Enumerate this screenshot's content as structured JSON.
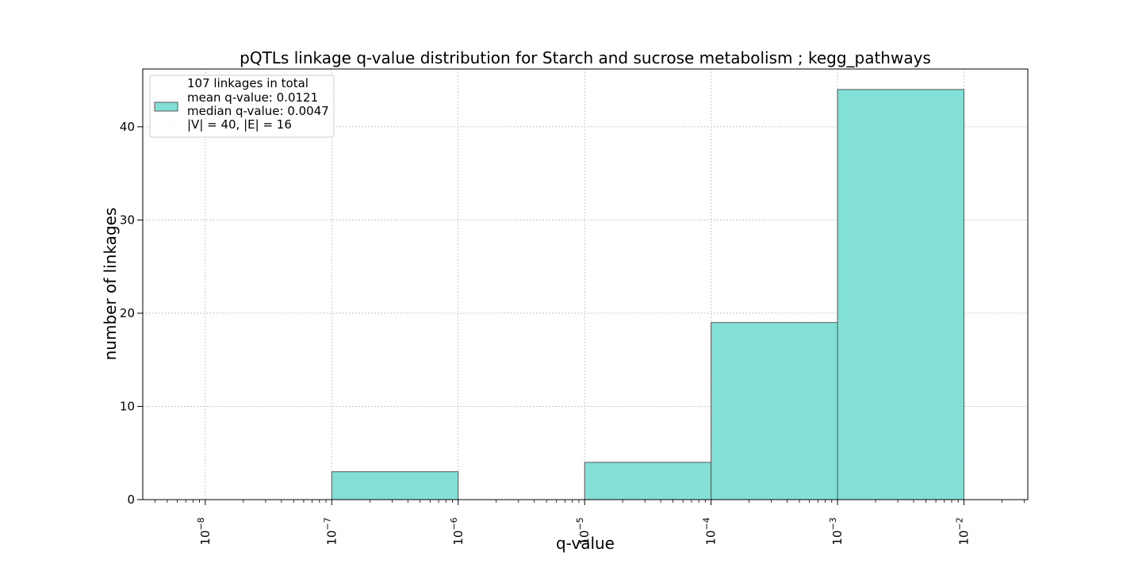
{
  "chart_data": {
    "type": "bar",
    "title": "pQTLs linkage q-value distribution for Starch and sucrose metabolism ; kegg_pathways",
    "xlabel": "q-value",
    "ylabel": "number of linkages",
    "x_scale": "log",
    "xlim": [
      3.2e-09,
      0.032
    ],
    "ylim": [
      0,
      46.2
    ],
    "x_ticks": [
      {
        "value": 1e-08,
        "base": "10",
        "exp": "−8"
      },
      {
        "value": 1e-07,
        "base": "10",
        "exp": "−7"
      },
      {
        "value": 1e-06,
        "base": "10",
        "exp": "−6"
      },
      {
        "value": 1e-05,
        "base": "10",
        "exp": "−5"
      },
      {
        "value": 0.0001,
        "base": "10",
        "exp": "−4"
      },
      {
        "value": 0.001,
        "base": "10",
        "exp": "−3"
      },
      {
        "value": 0.01,
        "base": "10",
        "exp": "−2"
      }
    ],
    "y_ticks": [
      0,
      10,
      20,
      30,
      40
    ],
    "grid": true,
    "legend_position": "top-left",
    "legend_lines": [
      "107 linkages in total",
      "mean q-value: 0.0121",
      "median q-value: 0.0047",
      "|V| = 40, |E| = 16"
    ],
    "bins": [
      {
        "x0": 1e-08,
        "x1": 1e-07,
        "count": 0
      },
      {
        "x0": 1e-07,
        "x1": 1e-06,
        "count": 3
      },
      {
        "x0": 1e-06,
        "x1": 1e-05,
        "count": 0
      },
      {
        "x0": 1e-05,
        "x1": 0.0001,
        "count": 4
      },
      {
        "x0": 0.0001,
        "x1": 0.001,
        "count": 19
      },
      {
        "x0": 0.001,
        "x1": 0.01,
        "count": 44
      }
    ],
    "colors": {
      "bar_fill": "#82e0d6",
      "bar_edge": "#555555",
      "grid": "#c8c8c8"
    }
  }
}
